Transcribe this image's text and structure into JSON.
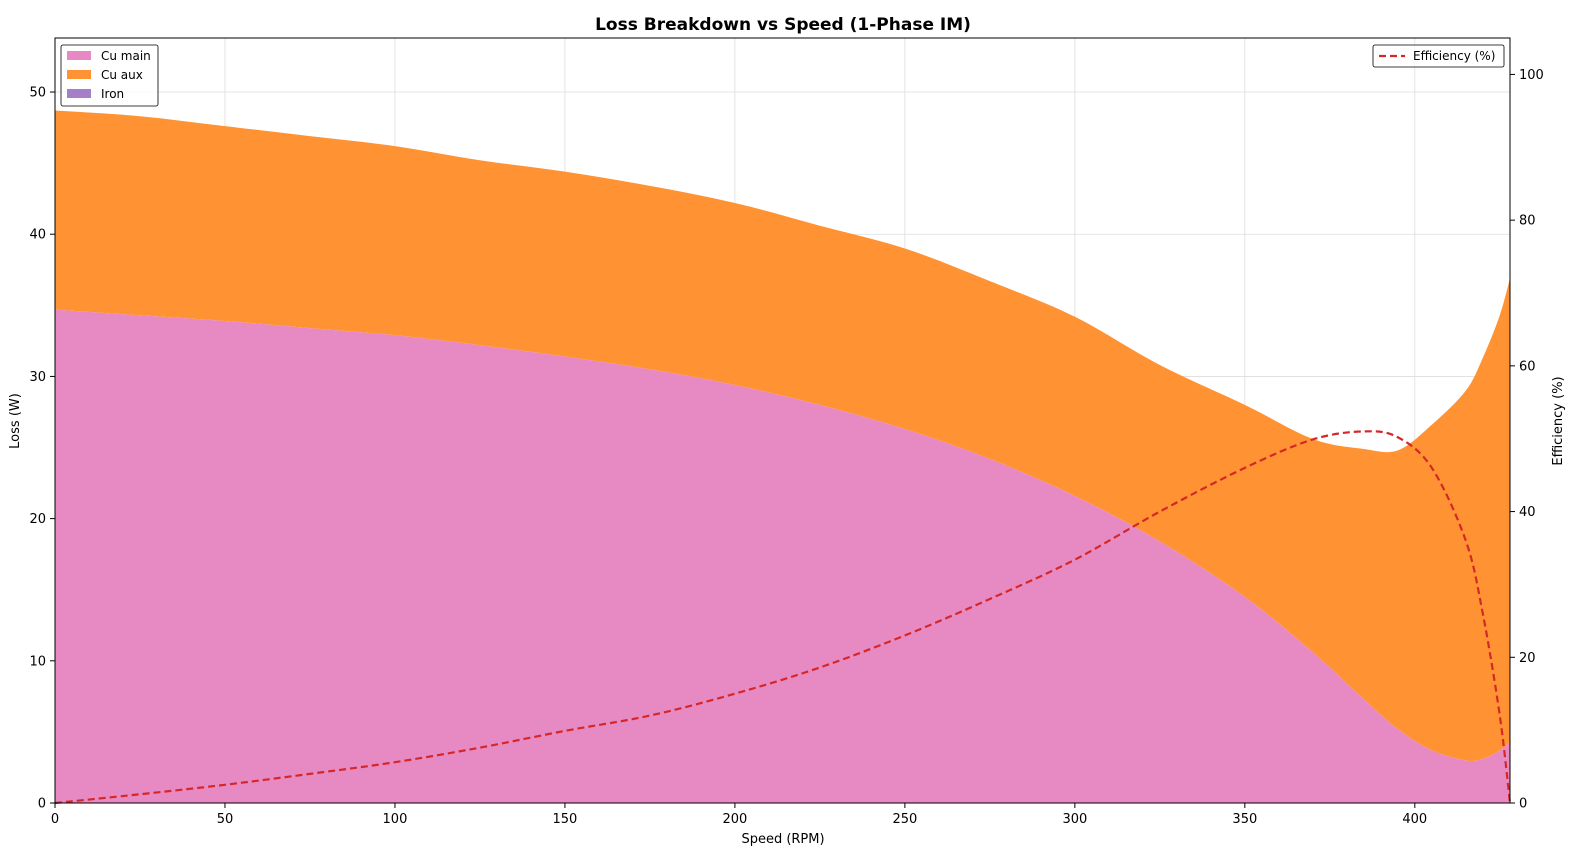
{
  "chart_data": {
    "type": "area",
    "title": "Loss Breakdown vs Speed  (1-Phase IM)",
    "xlabel": "Speed (RPM)",
    "ylabel": "Loss (W)",
    "y2label": "Efficiency (%)",
    "xlim": [
      0,
      428
    ],
    "ylim": [
      0,
      53.8
    ],
    "y2lim": [
      0,
      105
    ],
    "xticks": [
      0,
      50,
      100,
      150,
      200,
      250,
      300,
      350,
      400
    ],
    "yticks": [
      0,
      10,
      20,
      30,
      40,
      50
    ],
    "y2ticks": [
      0,
      20,
      40,
      60,
      80,
      100
    ],
    "grid": true,
    "stack_legend_position": "upper-left",
    "line_legend_position": "upper-right",
    "x": [
      0,
      25,
      50,
      75,
      100,
      125,
      150,
      175,
      200,
      225,
      250,
      275,
      300,
      325,
      350,
      370,
      385,
      395,
      405,
      415,
      420,
      425,
      428
    ],
    "series": [
      {
        "name": "Cu main",
        "kind": "stack",
        "color": "#e78ac3",
        "values": [
          34.7,
          34.3,
          33.9,
          33.4,
          32.9,
          32.2,
          31.4,
          30.5,
          29.4,
          28.0,
          26.3,
          24.2,
          21.6,
          18.4,
          14.5,
          10.6,
          7.3,
          5.2,
          3.7,
          3.0,
          3.1,
          3.7,
          4.3
        ]
      },
      {
        "name": "Cu aux",
        "kind": "stack",
        "color": "#ff9233",
        "values": [
          14.0,
          14.0,
          13.7,
          13.5,
          13.3,
          13.0,
          13.0,
          12.9,
          12.8,
          12.6,
          12.7,
          12.5,
          12.6,
          12.4,
          13.5,
          15.0,
          17.6,
          19.6,
          22.9,
          26.0,
          28.2,
          30.6,
          32.6
        ]
      },
      {
        "name": "Iron",
        "kind": "stack",
        "color": "#a57fc8",
        "values": [
          0,
          0,
          0,
          0,
          0,
          0,
          0,
          0,
          0,
          0,
          0,
          0,
          0,
          0,
          0,
          0,
          0,
          0,
          0,
          0,
          0,
          0,
          0
        ]
      },
      {
        "name": "Efficiency (%)",
        "kind": "line",
        "axis": "right",
        "color": "#d62728",
        "values": [
          0,
          1.2,
          2.5,
          4.0,
          5.6,
          7.6,
          9.9,
          12.0,
          15.0,
          18.6,
          23.0,
          28.0,
          33.4,
          40.0,
          46.0,
          49.9,
          51.0,
          50.2,
          46.0,
          36.0,
          26.0,
          12.0,
          0
        ]
      }
    ]
  }
}
